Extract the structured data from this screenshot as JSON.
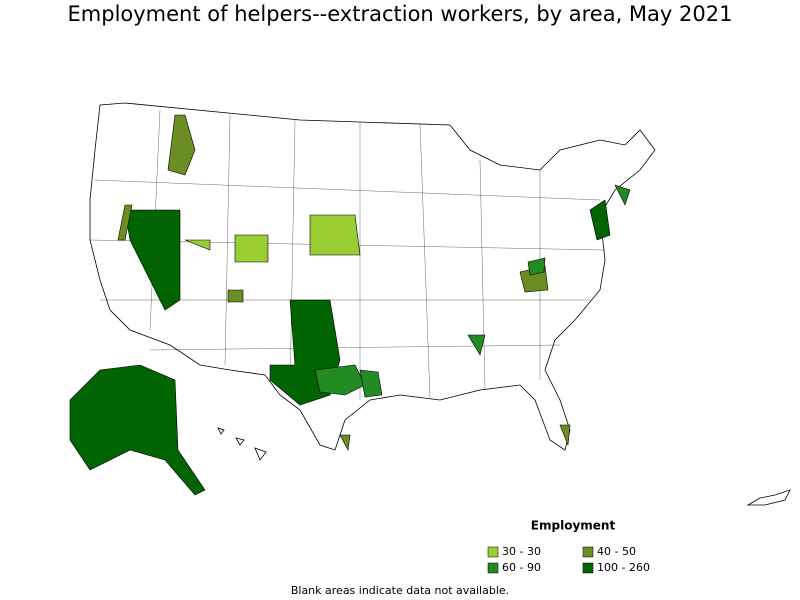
{
  "title": "Employment of helpers--extraction workers, by area, May 2021",
  "legend": {
    "title": "Employment",
    "items": [
      {
        "label": "30 - 30",
        "color": "#9acd32"
      },
      {
        "label": "40 - 50",
        "color": "#6b8e23"
      },
      {
        "label": "60 - 90",
        "color": "#228b22"
      },
      {
        "label": "100 - 260",
        "color": "#006400"
      }
    ]
  },
  "note": "Blank areas indicate data not available."
}
